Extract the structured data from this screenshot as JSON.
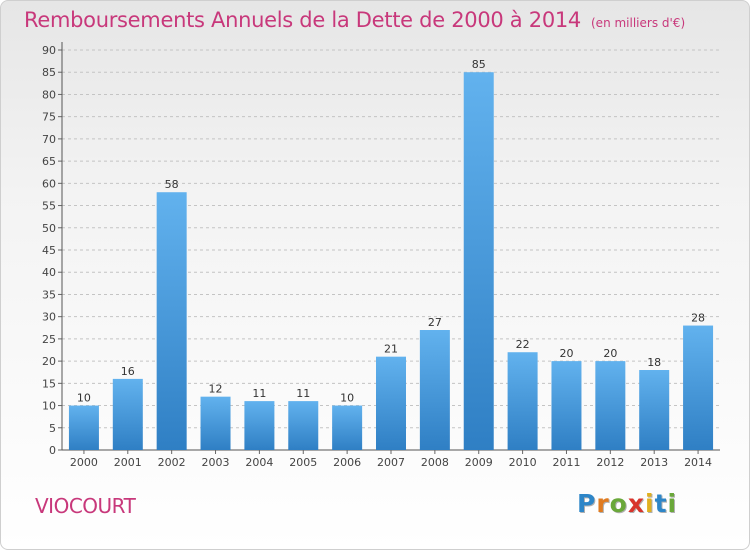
{
  "chart_data": {
    "type": "bar",
    "title": "Remboursements Annuels de la Dette de 2000 à 2014",
    "subtitle": "(en milliers d'€)",
    "categories": [
      "2000",
      "2001",
      "2002",
      "2003",
      "2004",
      "2005",
      "2006",
      "2007",
      "2008",
      "2009",
      "2010",
      "2011",
      "2012",
      "2013",
      "2014"
    ],
    "values": [
      10,
      16,
      58,
      12,
      11,
      11,
      10,
      21,
      27,
      85,
      22,
      20,
      20,
      18,
      28
    ],
    "ylim": [
      0,
      90
    ],
    "yticks": [
      0,
      5,
      10,
      15,
      20,
      25,
      30,
      35,
      40,
      45,
      50,
      55,
      60,
      65,
      70,
      75,
      80,
      85,
      90
    ],
    "grid": "horizontal-dashed",
    "legend": "none",
    "bar_color": "#4a9ee0",
    "title_color": "#c8387b"
  },
  "commune": "VIOCOURT",
  "logo": {
    "letters": [
      "P",
      "r",
      "o",
      "x",
      "i",
      "t",
      "i"
    ],
    "colors": [
      "#2e86c8",
      "#e07b20",
      "#6aa83a",
      "#d8342c",
      "#e0b020",
      "#2e86c8",
      "#6aa83a"
    ]
  }
}
